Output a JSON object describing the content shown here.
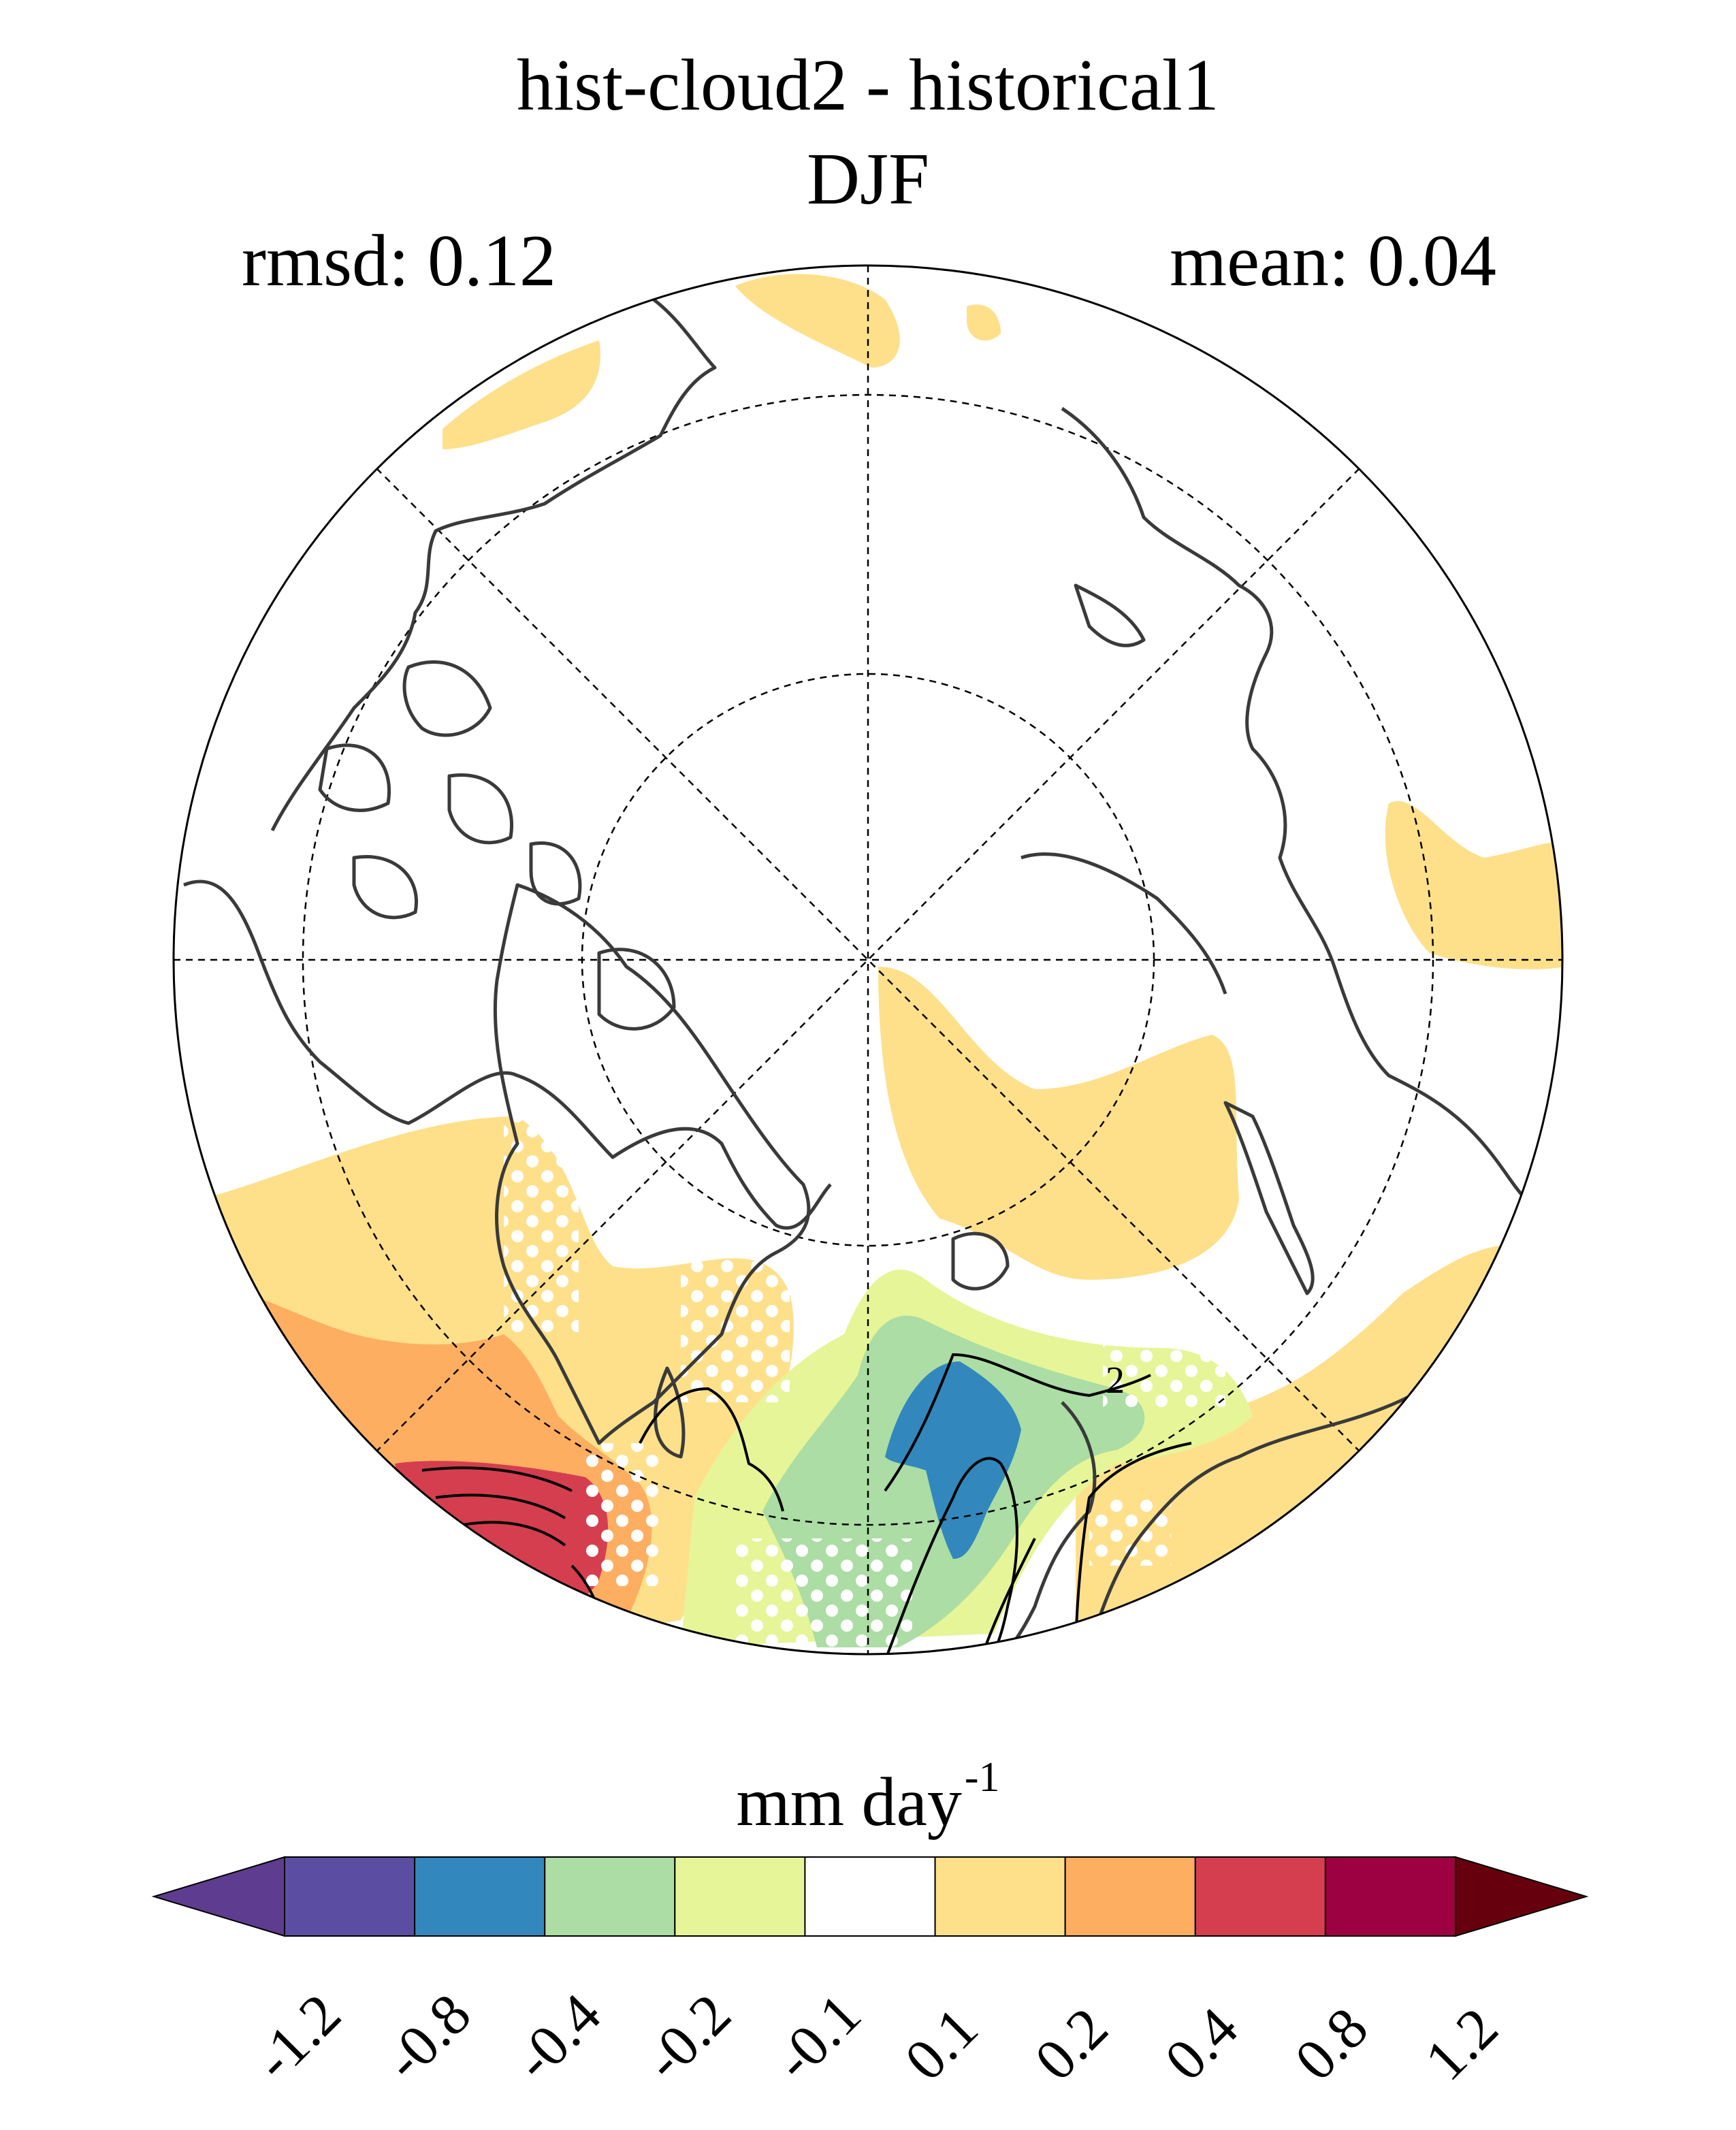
{
  "map": {
    "title_line1": "hist-cloud2 - historical1",
    "title_line2": "DJF",
    "rmsd_text": "rmsd: 0.12",
    "mean_text": "mean: 0.04",
    "projection": "north polar stereographic",
    "contour_label": "2",
    "stippling_color": "#ffffff"
  },
  "colorbar": {
    "unit_base": "mm day",
    "unit_exponent": "-1",
    "ticks": [
      "-1.2",
      "-0.8",
      "-0.4",
      "-0.2",
      "-0.1",
      "0.1",
      "0.2",
      "0.4",
      "0.8",
      "1.2"
    ],
    "colors": [
      "#5e3c8f",
      "#5b4ea2",
      "#3288bd",
      "#abdda4",
      "#e6f598",
      "#ffffff",
      "#fee08b",
      "#fdae61",
      "#d53e4f",
      "#9e0142",
      "#67000d"
    ]
  }
}
